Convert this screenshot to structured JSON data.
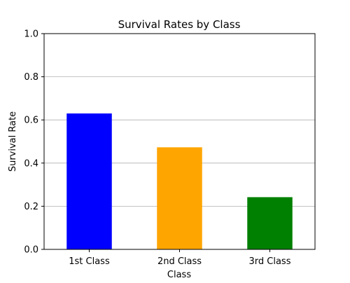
{
  "chart_data": {
    "type": "bar",
    "title": "Survival Rates by Class",
    "xlabel": "Class",
    "ylabel": "Survival Rate",
    "categories": [
      "1st Class",
      "2nd Class",
      "3rd Class"
    ],
    "values": [
      0.63,
      0.473,
      0.242
    ],
    "colors": [
      "#0000ff",
      "#ffa500",
      "#008000"
    ],
    "ylim": [
      0,
      1.0
    ],
    "yticks": [
      "0.0",
      "0.2",
      "0.4",
      "0.6",
      "0.8",
      "1.0"
    ],
    "grid": "y-axis",
    "legend": "none"
  }
}
